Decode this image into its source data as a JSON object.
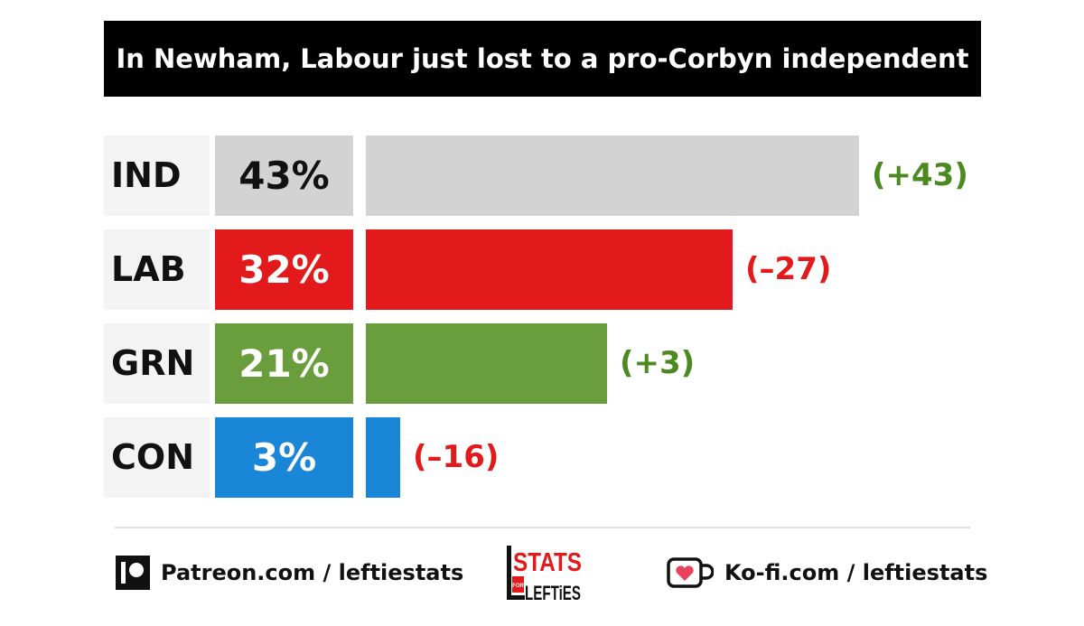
{
  "chart_data": {
    "type": "bar",
    "title": "In Newham, Labour just lost to a pro-Corbyn independent",
    "orientation": "horizontal",
    "categories": [
      "IND",
      "LAB",
      "GRN",
      "CON"
    ],
    "values": [
      43,
      32,
      21,
      3
    ],
    "value_labels": [
      "43%",
      "32%",
      "21%",
      "3%"
    ],
    "changes": [
      43,
      -27,
      3,
      -16
    ],
    "change_labels": [
      "(+43)",
      "(–27)",
      "(+3)",
      "(–16)"
    ],
    "colors": [
      "#d3d3d3",
      "#e31a1c",
      "#6a9e3c",
      "#1a86d8"
    ],
    "pct_text_colors": [
      "#111111",
      "#ffffff",
      "#ffffff",
      "#ffffff"
    ],
    "change_colors": [
      "#4a8a20",
      "#e31a1c",
      "#4a8a20",
      "#e31a1c"
    ],
    "xlim": [
      0,
      43
    ],
    "grid": false
  },
  "footer": {
    "patreon_text": "Patreon.com / leftiestats",
    "kofi_text": "Ko-fi.com / leftiestats",
    "logo_text_top": "STATS",
    "logo_text_for": "FOR",
    "logo_text_bottom": "LEFTiES",
    "patreon_icon": "patreon-icon",
    "kofi_icon": "kofi-cup-icon"
  }
}
